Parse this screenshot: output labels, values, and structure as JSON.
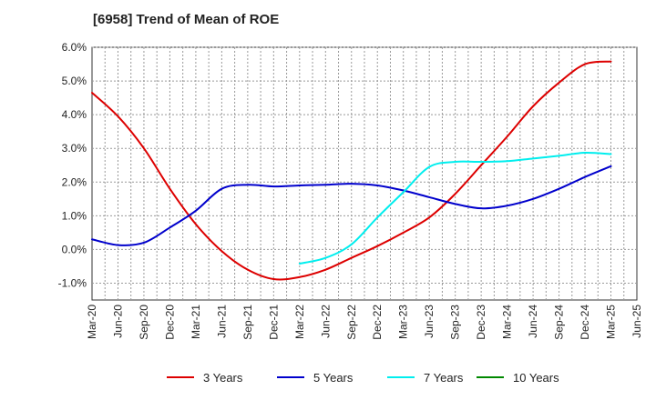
{
  "chart_data": {
    "type": "line",
    "title": "[6958]  Trend of Mean of ROE",
    "x_categories": [
      "Mar-20",
      "Jun-20",
      "Sep-20",
      "Dec-20",
      "Mar-21",
      "Jun-21",
      "Sep-21",
      "Dec-21",
      "Mar-22",
      "Jun-22",
      "Sep-22",
      "Dec-22",
      "Mar-23",
      "Jun-23",
      "Sep-23",
      "Dec-23",
      "Mar-24",
      "Jun-24",
      "Sep-24",
      "Dec-24",
      "Mar-25",
      "Jun-25"
    ],
    "y_ticks": [
      "6.0%",
      "5.0%",
      "4.0%",
      "3.0%",
      "2.0%",
      "1.0%",
      "0.0%",
      "-1.0%"
    ],
    "y_tick_values": [
      6,
      5,
      4,
      3,
      2,
      1,
      0,
      -1
    ],
    "ylim": [
      -1.5,
      6.0
    ],
    "grid": true,
    "legend_position": "bottom",
    "series": [
      {
        "name": "3 Years",
        "color": "#dd0000",
        "values": [
          4.65,
          3.95,
          3.0,
          1.8,
          0.75,
          -0.05,
          -0.6,
          -0.88,
          -0.82,
          -0.6,
          -0.25,
          0.1,
          0.5,
          0.95,
          1.65,
          2.5,
          3.35,
          4.25,
          4.95,
          5.5,
          5.58,
          null
        ]
      },
      {
        "name": "5 Years",
        "color": "#0000cc",
        "values": [
          0.3,
          0.13,
          0.2,
          0.65,
          1.15,
          1.8,
          1.92,
          1.87,
          1.9,
          1.92,
          1.95,
          1.9,
          1.75,
          1.55,
          1.35,
          1.22,
          1.3,
          1.5,
          1.8,
          2.15,
          2.47,
          null
        ]
      },
      {
        "name": "7 Years",
        "color": "#00eeee",
        "values": [
          null,
          null,
          null,
          null,
          null,
          null,
          null,
          null,
          -0.42,
          -0.25,
          0.15,
          0.95,
          1.7,
          2.45,
          2.6,
          2.6,
          2.62,
          2.7,
          2.78,
          2.87,
          2.83,
          null
        ]
      },
      {
        "name": "10 Years",
        "color": "#008800",
        "values": [
          null,
          null,
          null,
          null,
          null,
          null,
          null,
          null,
          null,
          null,
          null,
          null,
          null,
          null,
          null,
          null,
          null,
          null,
          null,
          null,
          null,
          null
        ]
      }
    ]
  }
}
